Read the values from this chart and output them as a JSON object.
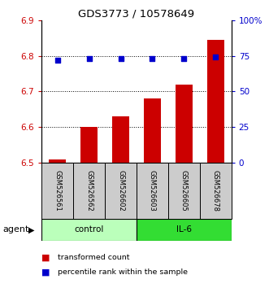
{
  "title": "GDS3773 / 10578649",
  "samples": [
    "GSM526561",
    "GSM526562",
    "GSM526602",
    "GSM526603",
    "GSM526605",
    "GSM526678"
  ],
  "red_values": [
    6.51,
    6.6,
    6.63,
    6.68,
    6.72,
    6.845
  ],
  "blue_values": [
    72,
    73,
    73,
    73,
    73,
    74
  ],
  "ylim_left": [
    6.5,
    6.9
  ],
  "ylim_right": [
    0,
    100
  ],
  "yticks_left": [
    6.5,
    6.6,
    6.7,
    6.8,
    6.9
  ],
  "yticks_right": [
    0,
    25,
    50,
    75,
    100
  ],
  "ytick_labels_right": [
    "0",
    "25",
    "50",
    "75",
    "100%"
  ],
  "groups": [
    {
      "label": "control",
      "color_light": "#bbffbb",
      "n": 3
    },
    {
      "label": "IL-6",
      "color_dark": "#33dd33",
      "n": 3
    }
  ],
  "bar_color": "#cc0000",
  "dot_color": "#0000cc",
  "baseline": 6.5,
  "legend_red": "transformed count",
  "legend_blue": "percentile rank within the sample",
  "agent_label": "agent",
  "left_tick_color": "#cc0000",
  "right_tick_color": "#0000cc",
  "grid_color": "#000000",
  "sample_box_color": "#cccccc",
  "ctrl_color": "#bbffbb",
  "il6_color": "#33dd33"
}
